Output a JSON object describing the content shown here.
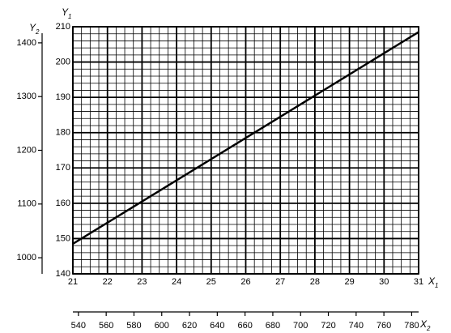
{
  "chart_data": {
    "type": "line",
    "x_label": "X",
    "x_label_sub": "1",
    "y_label": "Y",
    "y_label_sub": "1",
    "x2_label": "X",
    "x2_label_sub": "2",
    "y2_label": "Y",
    "y2_label_sub": "2",
    "x": [
      21,
      31
    ],
    "series": [
      {
        "color": "#000000",
        "values": [
          148.5,
          208.5
        ]
      }
    ],
    "xlim": [
      21,
      31
    ],
    "xticks": [
      21,
      22,
      23,
      24,
      25,
      26,
      27,
      28,
      29,
      30,
      31
    ],
    "ylim": [
      140,
      210
    ],
    "yticks": [
      140,
      150,
      160,
      170,
      180,
      190,
      200,
      210
    ],
    "x2lim": [
      536,
      785
    ],
    "x2ticks": [
      540,
      560,
      580,
      600,
      620,
      640,
      660,
      680,
      700,
      720,
      740,
      760,
      780
    ],
    "y2lim": [
      970,
      1430
    ],
    "y2ticks": [
      1000,
      1100,
      1200,
      1300,
      1400
    ],
    "grid": true
  }
}
